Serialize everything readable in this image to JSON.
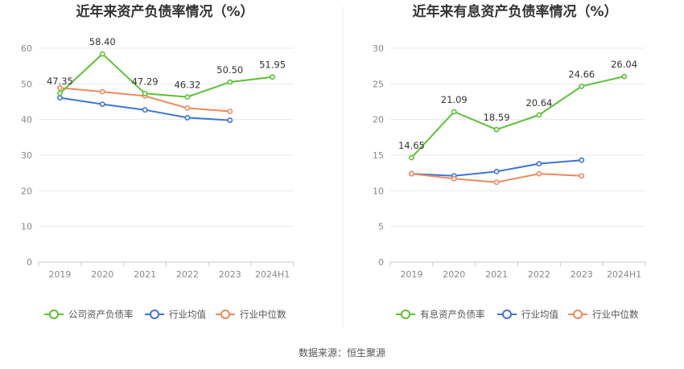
{
  "source": "数据来源：恒生聚源",
  "chart_data": [
    {
      "type": "line",
      "title": "近年来资产负债率情况（%）",
      "categories": [
        "2019",
        "2020",
        "2021",
        "2022",
        "2023",
        "2024H1"
      ],
      "ylim": [
        0,
        60
      ],
      "yticks": [
        0,
        10,
        20,
        30,
        40,
        50,
        60
      ],
      "grid": true,
      "legend_position": "bottom",
      "series": [
        {
          "name": "公司资产负债率",
          "color": "#5CC134",
          "values": [
            47.35,
            58.4,
            47.29,
            46.32,
            50.5,
            51.95
          ],
          "labels": [
            "47.35",
            "58.40",
            "47.29",
            "46.32",
            "50.50",
            "51.95"
          ]
        },
        {
          "name": "行业均值",
          "color": "#3E74D6",
          "values": [
            46.1,
            44.3,
            42.7,
            40.5,
            39.8,
            null
          ]
        },
        {
          "name": "行业中位数",
          "color": "#EE8A5E",
          "values": [
            48.9,
            47.8,
            46.6,
            43.2,
            42.3,
            null
          ]
        }
      ]
    },
    {
      "type": "line",
      "title": "近年来有息资产负债率情况（%）",
      "categories": [
        "2019",
        "2020",
        "2021",
        "2022",
        "2023",
        "2024H1"
      ],
      "ylim": [
        0,
        30
      ],
      "yticks": [
        0,
        5,
        10,
        15,
        20,
        25,
        30
      ],
      "grid": true,
      "legend_position": "bottom",
      "series": [
        {
          "name": "有息资产负债率",
          "color": "#5CC134",
          "values": [
            14.65,
            21.09,
            18.59,
            20.64,
            24.66,
            26.04
          ],
          "labels": [
            "14.65",
            "21.09",
            "18.59",
            "20.64",
            "24.66",
            "26.04"
          ]
        },
        {
          "name": "行业均值",
          "color": "#3E74D6",
          "values": [
            12.4,
            12.1,
            12.7,
            13.8,
            14.3,
            null
          ]
        },
        {
          "name": "行业中位数",
          "color": "#EE8A5E",
          "values": [
            12.4,
            11.7,
            11.2,
            12.4,
            12.1,
            null
          ]
        }
      ]
    }
  ]
}
